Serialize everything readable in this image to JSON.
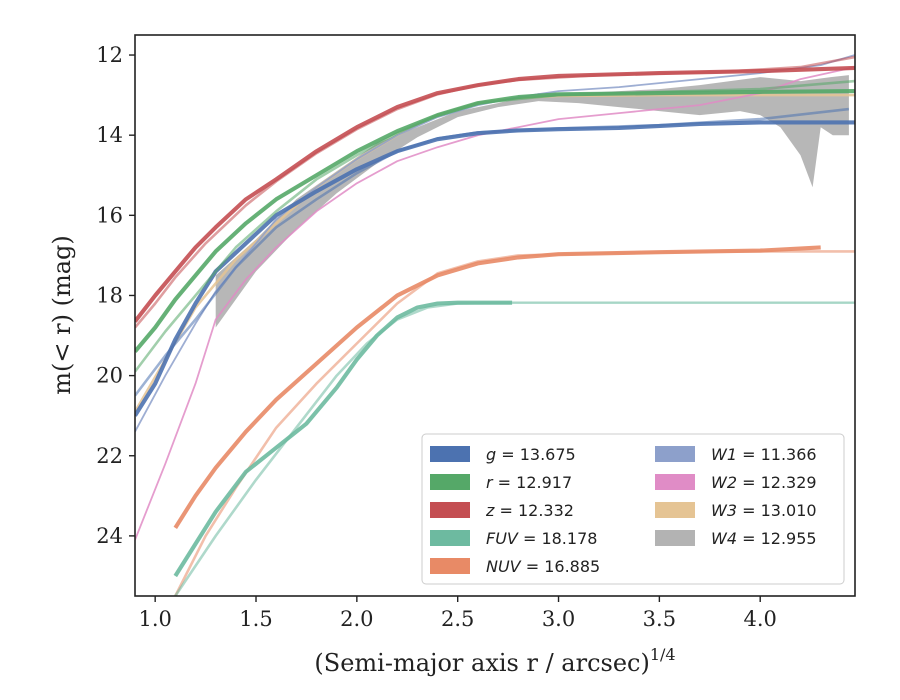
{
  "chart_data": {
    "type": "line",
    "xlabel": "(Semi-major axis r / arcsec)",
    "xlabel_exponent": "1/4",
    "ylabel": "m(< r) (mag)",
    "xlim": [
      0.9,
      4.47
    ],
    "ylim": [
      25.5,
      11.5
    ],
    "y_inverted": true,
    "xticks": [
      "1.0",
      "1.5",
      "2.0",
      "2.5",
      "3.0",
      "3.5",
      "4.0"
    ],
    "xtick_values": [
      1.0,
      1.5,
      2.0,
      2.5,
      3.0,
      3.5,
      4.0
    ],
    "yticks": [
      "12",
      "14",
      "16",
      "18",
      "20",
      "22",
      "24"
    ],
    "ytick_values": [
      12,
      14,
      16,
      18,
      20,
      22,
      24
    ],
    "legend_position": "lower-right",
    "legend": [
      {
        "band": "g",
        "value": "13.675",
        "color": "#4c72b0"
      },
      {
        "band": "r",
        "value": "12.917",
        "color": "#55a868"
      },
      {
        "band": "z",
        "value": "12.332",
        "color": "#c44e52"
      },
      {
        "band": "FUV",
        "value": "18.178",
        "color": "#6dbaa0"
      },
      {
        "band": "NUV",
        "value": "16.885",
        "color": "#e88a66"
      },
      {
        "band": "W1",
        "value": "11.366",
        "color": "#8da0cb"
      },
      {
        "band": "W2",
        "value": "12.329",
        "color": "#e08cc6"
      },
      {
        "band": "W3",
        "value": "13.010",
        "color": "#e5c494"
      },
      {
        "band": "W4",
        "value": "12.955",
        "color": "#b3b3b3"
      }
    ],
    "series": [
      {
        "name": "W4",
        "color": "#b3b3b3",
        "kind": "band",
        "upper": [
          [
            1.3,
            17.5
          ],
          [
            1.5,
            16.6
          ],
          [
            1.7,
            15.6
          ],
          [
            1.9,
            14.9
          ],
          [
            2.1,
            14.2
          ],
          [
            2.3,
            13.8
          ],
          [
            2.5,
            13.4
          ],
          [
            2.7,
            13.2
          ],
          [
            2.9,
            12.95
          ],
          [
            3.1,
            12.95
          ],
          [
            3.3,
            12.9
          ],
          [
            3.5,
            12.85
          ],
          [
            3.7,
            12.75
          ],
          [
            3.85,
            12.65
          ],
          [
            4.0,
            12.55
          ],
          [
            4.2,
            12.65
          ],
          [
            4.35,
            12.55
          ],
          [
            4.44,
            12.5
          ]
        ],
        "lower": [
          [
            4.44,
            14.0
          ],
          [
            4.36,
            14.0
          ],
          [
            4.3,
            13.8
          ],
          [
            4.26,
            15.3
          ],
          [
            4.2,
            14.5
          ],
          [
            4.1,
            13.8
          ],
          [
            4.0,
            13.5
          ],
          [
            3.9,
            13.4
          ],
          [
            3.7,
            13.5
          ],
          [
            3.5,
            13.4
          ],
          [
            3.3,
            13.3
          ],
          [
            3.1,
            13.2
          ],
          [
            2.9,
            13.15
          ],
          [
            2.7,
            13.3
          ],
          [
            2.5,
            13.55
          ],
          [
            2.3,
            14.05
          ],
          [
            2.1,
            14.7
          ],
          [
            1.9,
            15.45
          ],
          [
            1.7,
            16.35
          ],
          [
            1.5,
            17.4
          ],
          [
            1.3,
            18.8
          ]
        ]
      },
      {
        "name": "W3",
        "color": "#e5c494",
        "kind": "line",
        "width": 2.6,
        "points": [
          [
            0.9,
            20.9
          ],
          [
            1.05,
            19.6
          ],
          [
            1.2,
            18.3
          ],
          [
            1.4,
            17.1
          ],
          [
            1.6,
            16.2
          ],
          [
            1.8,
            15.3
          ],
          [
            2.0,
            14.6
          ],
          [
            2.2,
            14.0
          ],
          [
            2.4,
            13.5
          ],
          [
            2.6,
            13.2
          ],
          [
            2.8,
            13.07
          ],
          [
            3.0,
            13.02
          ],
          [
            3.5,
            13.0
          ],
          [
            4.0,
            13.0
          ],
          [
            4.47,
            13.0
          ]
        ]
      },
      {
        "name": "W2",
        "color": "#e08cc6",
        "kind": "line",
        "width": 1.8,
        "points": [
          [
            0.9,
            24.1
          ],
          [
            1.05,
            22.2
          ],
          [
            1.2,
            20.2
          ],
          [
            1.3,
            18.6
          ],
          [
            1.45,
            17.6
          ],
          [
            1.6,
            16.8
          ],
          [
            1.8,
            15.9
          ],
          [
            2.0,
            15.2
          ],
          [
            2.2,
            14.65
          ],
          [
            2.4,
            14.3
          ],
          [
            2.6,
            14.0
          ],
          [
            2.8,
            13.8
          ],
          [
            3.0,
            13.6
          ],
          [
            3.3,
            13.45
          ],
          [
            3.7,
            13.25
          ],
          [
            4.0,
            12.95
          ],
          [
            4.2,
            12.6
          ],
          [
            4.47,
            12.3
          ]
        ]
      },
      {
        "name": "W1",
        "color": "#8da0cb",
        "kind": "line",
        "width": 1.8,
        "points": [
          [
            0.9,
            21.4
          ],
          [
            1.05,
            20.0
          ],
          [
            1.2,
            18.7
          ],
          [
            1.3,
            17.9
          ],
          [
            1.45,
            17.0
          ],
          [
            1.6,
            16.1
          ],
          [
            1.8,
            15.3
          ],
          [
            2.0,
            14.6
          ],
          [
            2.2,
            14.0
          ],
          [
            2.4,
            13.55
          ],
          [
            2.6,
            13.25
          ],
          [
            2.8,
            13.05
          ],
          [
            3.0,
            12.9
          ],
          [
            3.3,
            12.8
          ],
          [
            3.7,
            12.6
          ],
          [
            4.0,
            12.45
          ],
          [
            4.3,
            12.25
          ],
          [
            4.47,
            12.0
          ]
        ]
      },
      {
        "name": "NUV",
        "color": "#e88a66",
        "kind": "double",
        "width": 2.6,
        "a": [
          [
            1.1,
            23.8
          ],
          [
            1.2,
            23.0
          ],
          [
            1.3,
            22.3
          ],
          [
            1.45,
            21.4
          ],
          [
            1.6,
            20.6
          ],
          [
            1.8,
            19.7
          ],
          [
            2.0,
            18.8
          ],
          [
            2.2,
            18.0
          ],
          [
            2.4,
            17.5
          ],
          [
            2.6,
            17.2
          ],
          [
            2.8,
            17.05
          ],
          [
            3.0,
            16.97
          ],
          [
            3.5,
            16.92
          ],
          [
            4.0,
            16.88
          ],
          [
            4.3,
            16.8
          ]
        ],
        "b": [
          [
            1.1,
            25.5
          ],
          [
            1.25,
            24.0
          ],
          [
            1.4,
            22.8
          ],
          [
            1.6,
            21.3
          ],
          [
            1.8,
            20.2
          ],
          [
            2.0,
            19.2
          ],
          [
            2.2,
            18.2
          ],
          [
            2.4,
            17.45
          ],
          [
            2.6,
            17.15
          ],
          [
            2.8,
            17.0
          ],
          [
            3.2,
            16.95
          ],
          [
            3.8,
            16.9
          ],
          [
            4.47,
            16.9
          ]
        ]
      },
      {
        "name": "FUV",
        "color": "#6dbaa0",
        "kind": "double",
        "width": 2.6,
        "a": [
          [
            1.1,
            25.0
          ],
          [
            1.2,
            24.2
          ],
          [
            1.3,
            23.4
          ],
          [
            1.45,
            22.4
          ],
          [
            1.6,
            21.8
          ],
          [
            1.75,
            21.2
          ],
          [
            1.9,
            20.3
          ],
          [
            2.0,
            19.6
          ],
          [
            2.1,
            19.0
          ],
          [
            2.2,
            18.55
          ],
          [
            2.3,
            18.3
          ],
          [
            2.4,
            18.2
          ],
          [
            2.5,
            18.18
          ],
          [
            2.77,
            18.18
          ]
        ],
        "b": [
          [
            1.1,
            25.5
          ],
          [
            1.3,
            24.0
          ],
          [
            1.5,
            22.6
          ],
          [
            1.7,
            21.3
          ],
          [
            1.9,
            20.0
          ],
          [
            2.05,
            19.2
          ],
          [
            2.2,
            18.6
          ],
          [
            2.35,
            18.3
          ],
          [
            2.5,
            18.2
          ],
          [
            2.77,
            18.18
          ]
        ],
        "flat": [
          [
            2.77,
            18.18
          ],
          [
            4.47,
            18.18
          ]
        ]
      },
      {
        "name": "g",
        "color": "#4c72b0",
        "kind": "double",
        "width": 2.6,
        "a": [
          [
            0.9,
            21.0
          ],
          [
            1.0,
            20.2
          ],
          [
            1.1,
            19.1
          ],
          [
            1.2,
            18.2
          ],
          [
            1.3,
            17.4
          ],
          [
            1.45,
            16.7
          ],
          [
            1.6,
            16.0
          ],
          [
            1.8,
            15.4
          ],
          [
            2.0,
            14.85
          ],
          [
            2.2,
            14.4
          ],
          [
            2.4,
            14.1
          ],
          [
            2.6,
            13.95
          ],
          [
            2.8,
            13.88
          ],
          [
            3.0,
            13.85
          ],
          [
            3.3,
            13.82
          ],
          [
            3.7,
            13.72
          ],
          [
            4.0,
            13.68
          ],
          [
            4.47,
            13.68
          ]
        ],
        "b": [
          [
            0.9,
            20.5
          ],
          [
            1.05,
            19.5
          ],
          [
            1.2,
            18.6
          ],
          [
            1.4,
            17.3
          ],
          [
            1.6,
            16.3
          ],
          [
            1.8,
            15.6
          ],
          [
            2.0,
            14.95
          ],
          [
            2.2,
            14.4
          ],
          [
            2.4,
            14.08
          ],
          [
            2.6,
            13.93
          ],
          [
            3.0,
            13.83
          ],
          [
            3.5,
            13.75
          ],
          [
            4.0,
            13.6
          ],
          [
            4.44,
            13.35
          ]
        ]
      },
      {
        "name": "r",
        "color": "#55a868",
        "kind": "double",
        "width": 2.6,
        "a": [
          [
            0.9,
            19.4
          ],
          [
            1.0,
            18.8
          ],
          [
            1.1,
            18.1
          ],
          [
            1.2,
            17.5
          ],
          [
            1.3,
            16.9
          ],
          [
            1.45,
            16.2
          ],
          [
            1.6,
            15.6
          ],
          [
            1.8,
            15.0
          ],
          [
            2.0,
            14.4
          ],
          [
            2.2,
            13.9
          ],
          [
            2.4,
            13.5
          ],
          [
            2.6,
            13.2
          ],
          [
            2.8,
            13.05
          ],
          [
            3.0,
            12.98
          ],
          [
            3.5,
            12.95
          ],
          [
            4.0,
            12.92
          ],
          [
            4.47,
            12.9
          ]
        ],
        "b": [
          [
            0.9,
            19.9
          ],
          [
            1.05,
            18.9
          ],
          [
            1.2,
            18.0
          ],
          [
            1.4,
            16.8
          ],
          [
            1.6,
            15.9
          ],
          [
            1.8,
            15.1
          ],
          [
            2.0,
            14.5
          ],
          [
            2.2,
            13.95
          ],
          [
            2.4,
            13.5
          ],
          [
            2.6,
            13.2
          ],
          [
            3.0,
            13.0
          ],
          [
            3.5,
            12.92
          ],
          [
            4.0,
            12.85
          ],
          [
            4.47,
            12.65
          ]
        ]
      },
      {
        "name": "z",
        "color": "#c44e52",
        "kind": "double",
        "width": 2.6,
        "a": [
          [
            0.9,
            18.65
          ],
          [
            1.0,
            18.0
          ],
          [
            1.1,
            17.4
          ],
          [
            1.2,
            16.8
          ],
          [
            1.3,
            16.3
          ],
          [
            1.45,
            15.6
          ],
          [
            1.6,
            15.1
          ],
          [
            1.8,
            14.4
          ],
          [
            2.0,
            13.8
          ],
          [
            2.2,
            13.3
          ],
          [
            2.4,
            12.95
          ],
          [
            2.6,
            12.75
          ],
          [
            2.8,
            12.6
          ],
          [
            3.0,
            12.52
          ],
          [
            3.5,
            12.45
          ],
          [
            4.0,
            12.4
          ],
          [
            4.47,
            12.32
          ]
        ],
        "b": [
          [
            0.9,
            18.8
          ],
          [
            1.0,
            18.2
          ],
          [
            1.1,
            17.55
          ],
          [
            1.25,
            16.7
          ],
          [
            1.45,
            15.75
          ],
          [
            1.6,
            15.15
          ],
          [
            1.8,
            14.45
          ],
          [
            2.0,
            13.85
          ],
          [
            2.2,
            13.35
          ],
          [
            2.4,
            12.98
          ],
          [
            2.6,
            12.75
          ],
          [
            2.8,
            12.62
          ],
          [
            3.2,
            12.5
          ],
          [
            3.8,
            12.42
          ],
          [
            4.2,
            12.3
          ],
          [
            4.47,
            12.05
          ]
        ]
      }
    ]
  }
}
